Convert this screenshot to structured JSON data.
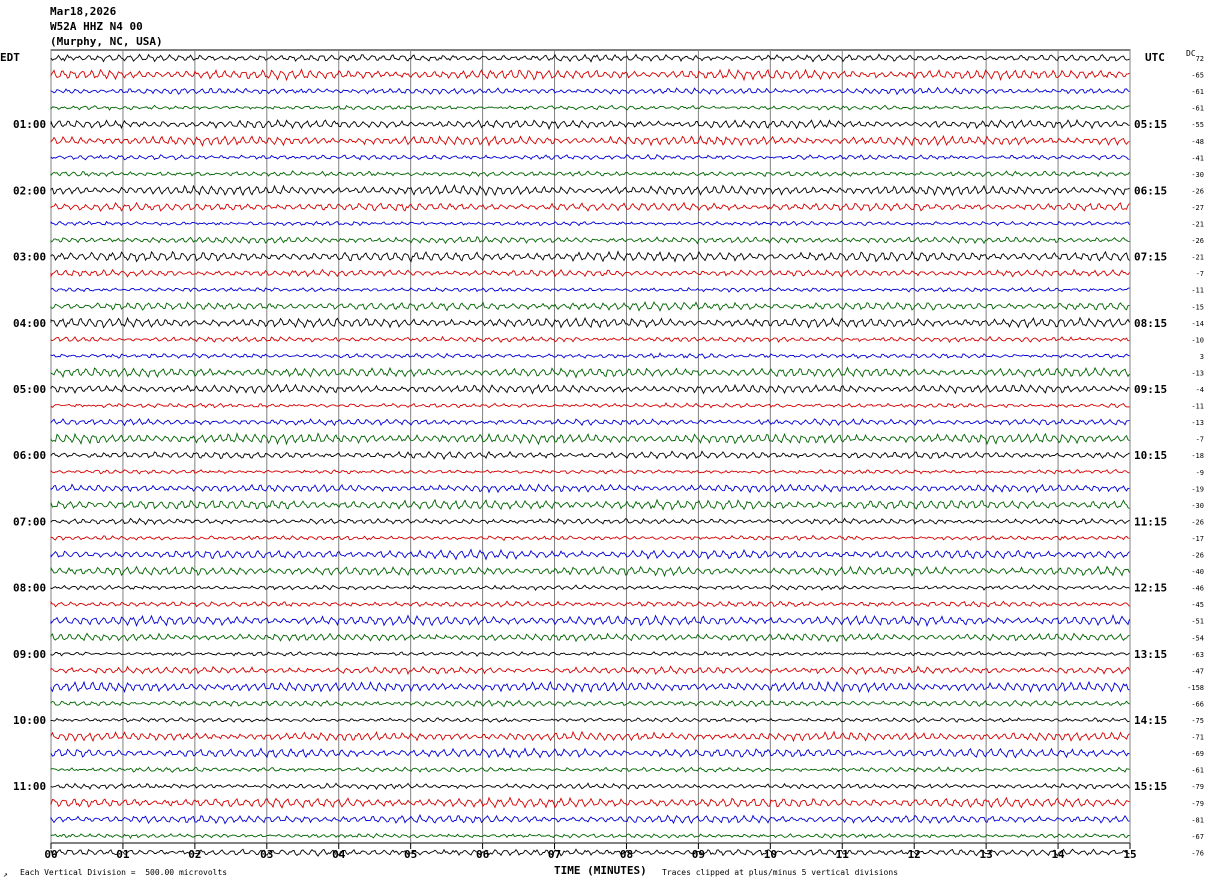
{
  "header": {
    "date": "Mar18,2026",
    "station": "W52A HHZ N4 00",
    "location": "(Murphy, NC, USA)"
  },
  "left_zone": "EDT",
  "right_zone": "UTC",
  "dc_label": "DC",
  "footer": {
    "left_mark": "↗",
    "scale": "Each Vertical Division =  500.00 microvolts",
    "xlabel": "TIME (MINUTES)",
    "clip_note": "Traces clipped at plus/minus 5 vertical divisions"
  },
  "colors": {
    "cycle": [
      "#000000",
      "#d40000",
      "#0000d4",
      "#006400"
    ],
    "grid": "#808080"
  },
  "chart_data": {
    "type": "line",
    "subtype": "helicorder",
    "x_ticks": [
      "00",
      "01",
      "02",
      "03",
      "04",
      "05",
      "06",
      "07",
      "08",
      "09",
      "10",
      "11",
      "12",
      "13",
      "14",
      "15"
    ],
    "xlim": [
      0,
      15
    ],
    "xlabel": "TIME (MINUTES)",
    "rows_per_hour": 4,
    "left_hour_labels": [
      "01:00",
      "02:00",
      "03:00",
      "04:00",
      "05:00",
      "06:00",
      "07:00",
      "08:00",
      "09:00",
      "10:00",
      "11:00"
    ],
    "right_hour_labels": [
      "05:15",
      "06:15",
      "07:15",
      "08:15",
      "09:15",
      "10:15",
      "11:15",
      "12:15",
      "13:15",
      "14:15",
      "15:15"
    ],
    "dc_offsets": [
      "72",
      "-65",
      "-61",
      "-61",
      "-55",
      "-48",
      "-41",
      "-30",
      "-26",
      "-27",
      "-21",
      "-26",
      "-21",
      "-7",
      "-11",
      "-15",
      "-14",
      "-10",
      "3",
      "-13",
      "-4",
      "-11",
      "-13",
      "-7",
      "-18",
      "-9",
      "-19",
      "-30",
      "-26",
      "-17",
      "-26",
      "-40",
      "-46",
      "-45",
      "-51",
      "-54",
      "-63",
      "-47",
      "-158",
      "-66",
      "-75",
      "-71",
      "-69",
      "-61",
      "-79",
      "-79",
      "-81",
      "-67",
      "-76"
    ]
  }
}
